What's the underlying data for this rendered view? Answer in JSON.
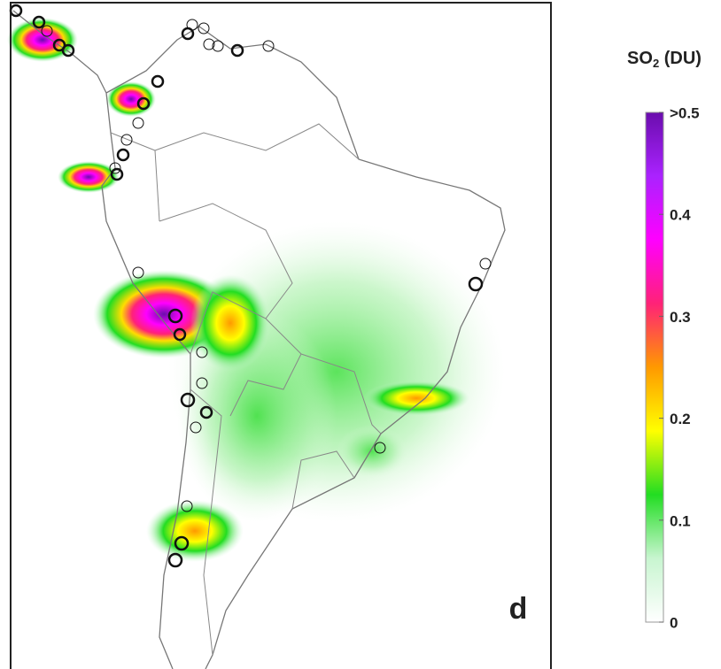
{
  "panel_label": "d",
  "colorbar": {
    "title": "SO",
    "title_sub": "2",
    "title_suffix": " (DU)",
    "range": [
      0,
      0.5
    ],
    "ticks": [
      0,
      0.1,
      0.2,
      0.3,
      0.4,
      {
        "value": 0.5,
        "label": ">0.5"
      }
    ],
    "colors": [
      "#ffffff",
      "#c8f5d0",
      "#22dd22",
      "#ffff00",
      "#ff9900",
      "#ff2277",
      "#ff00ff",
      "#aa22ff",
      "#6a0dad"
    ]
  }
}
